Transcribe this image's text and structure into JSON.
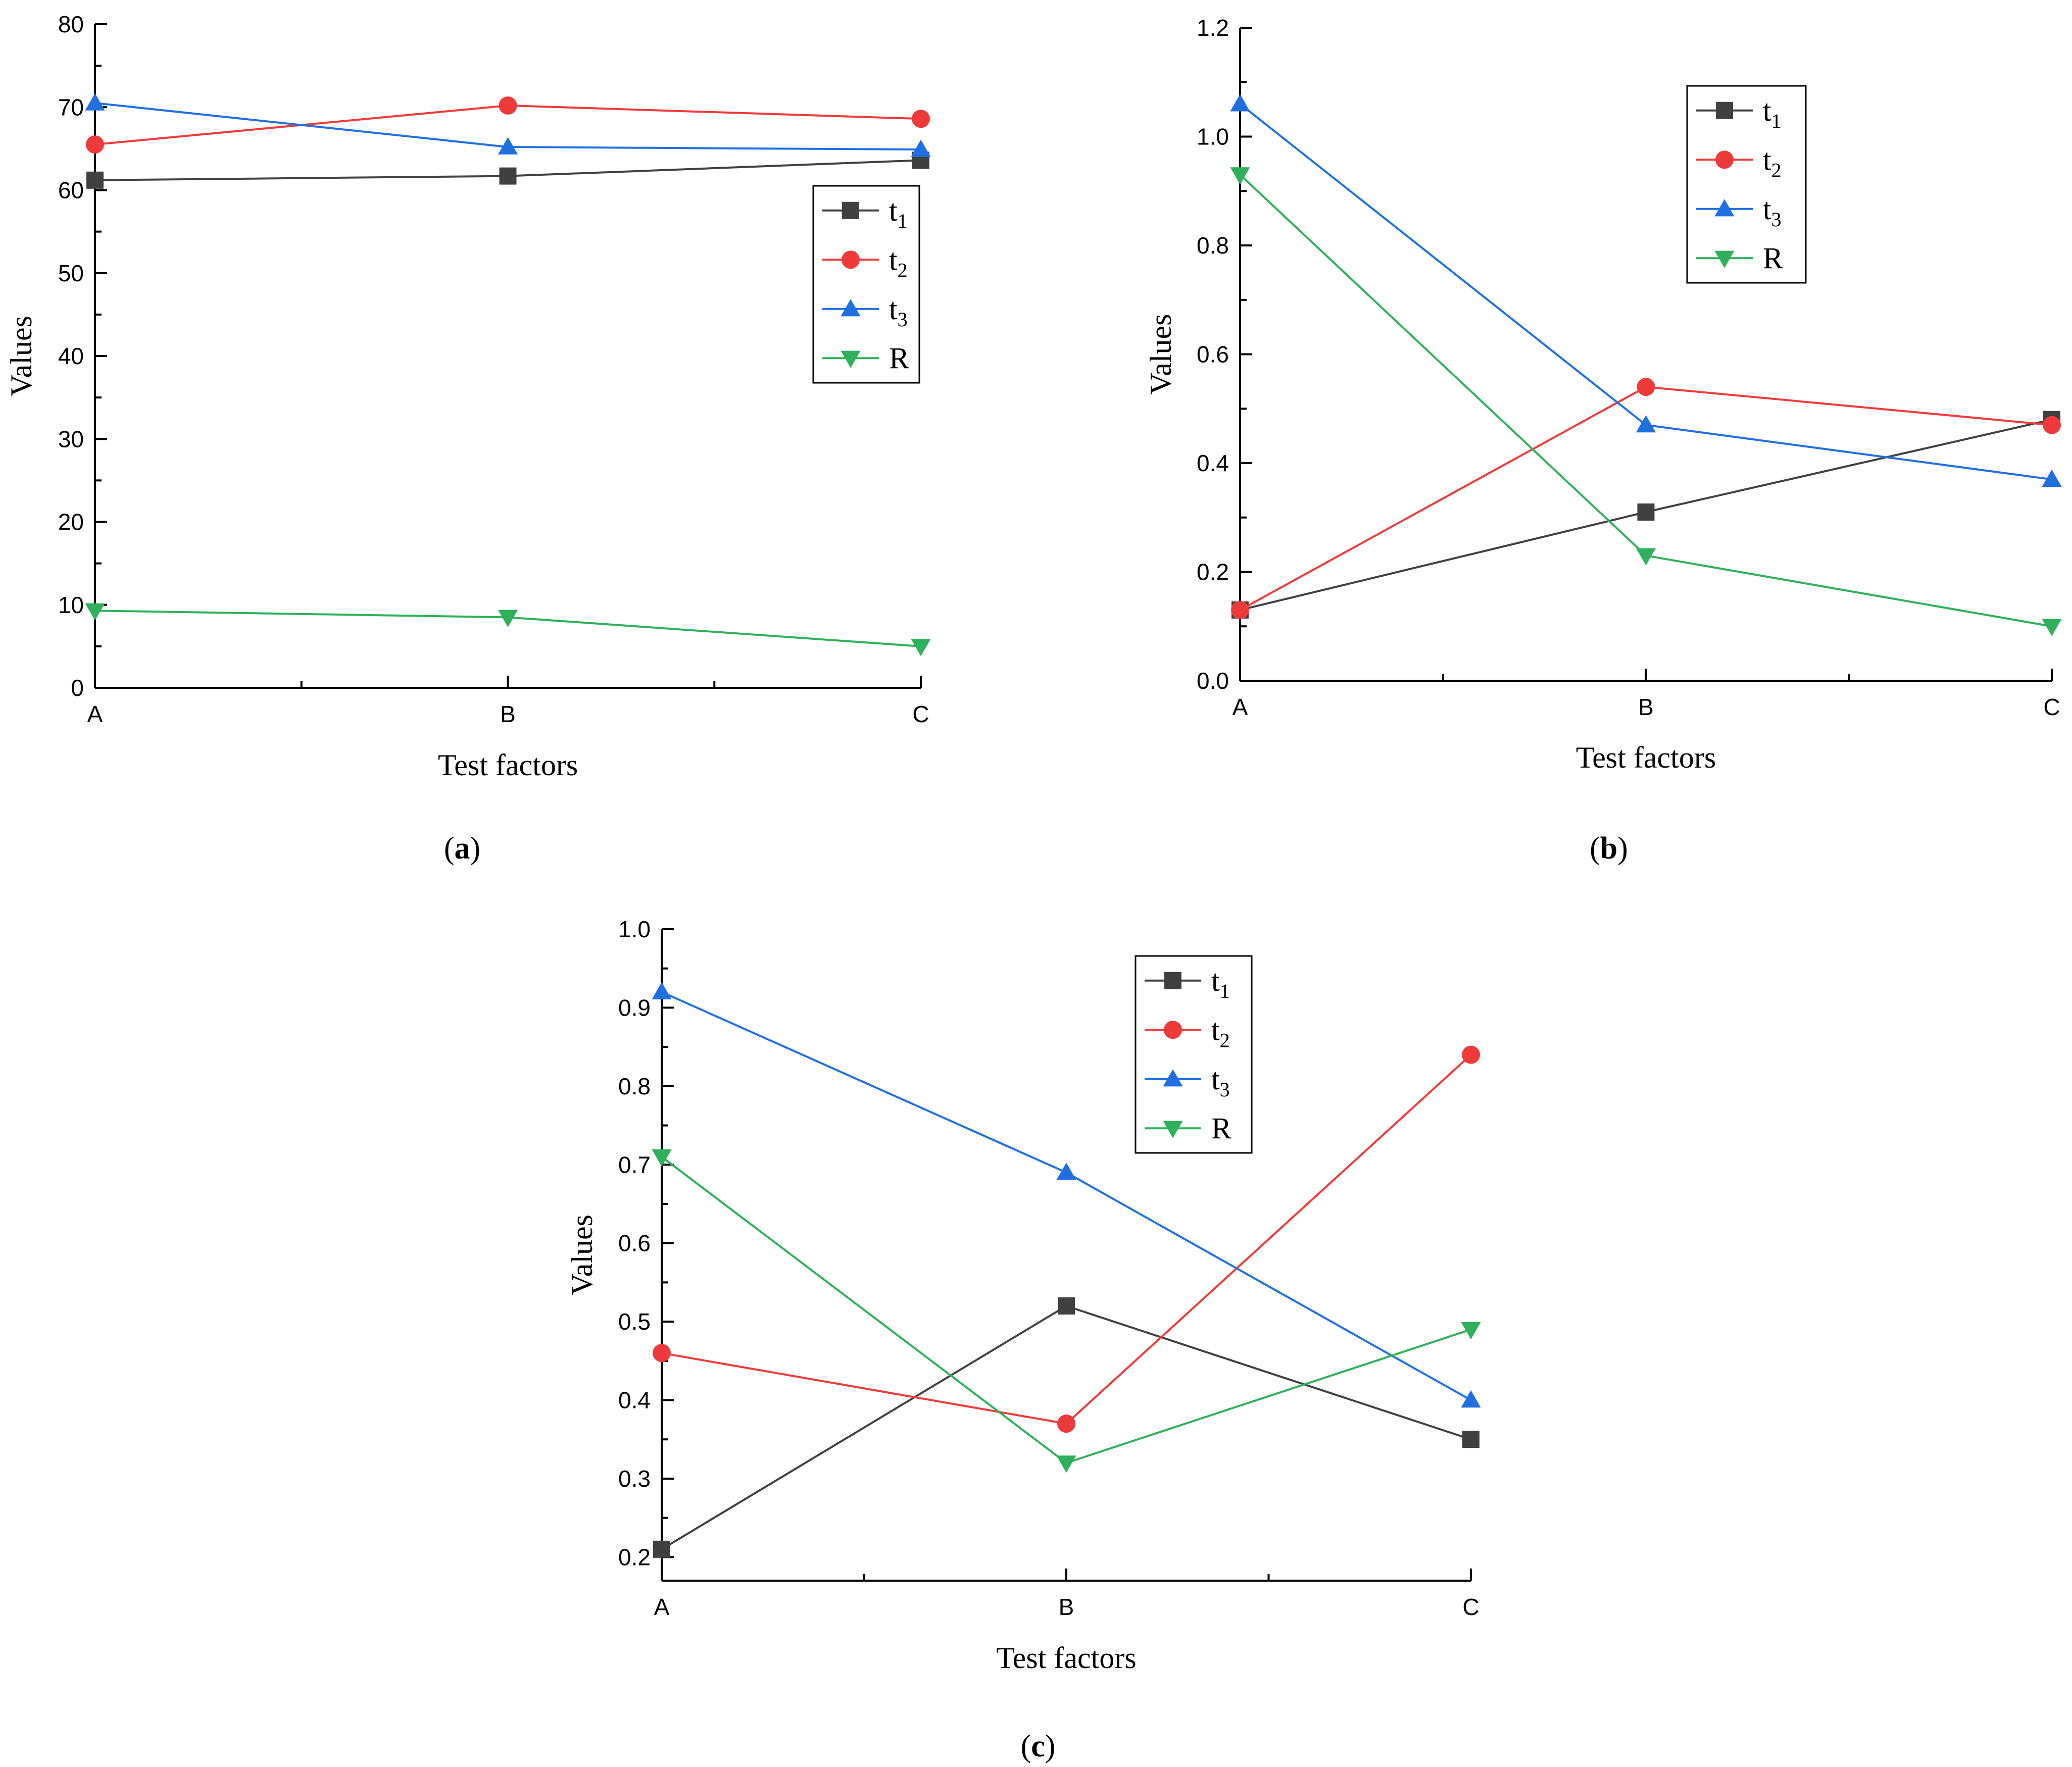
{
  "figure": {
    "panel_labels": [
      "a",
      "b",
      "c"
    ]
  },
  "colors": {
    "t1": "#404040",
    "t2": "#ef3a3a",
    "t3": "#1f6fe0",
    "R": "#2fb05a",
    "axis": "#000000"
  },
  "chart_data": [
    {
      "type": "line",
      "panel": "a",
      "xlabel": "Test factors",
      "ylabel": "Values",
      "categories": [
        "A",
        "B",
        "C"
      ],
      "ylim": [
        0,
        80
      ],
      "yticks": [
        0,
        10,
        20,
        30,
        40,
        50,
        60,
        70,
        80
      ],
      "ytick_labels": [
        "0",
        "10",
        "20",
        "30",
        "40",
        "50",
        "60",
        "70",
        "80"
      ],
      "legend_position": "right-middle",
      "series": [
        {
          "key": "t1",
          "name": "t",
          "sub": "1",
          "marker": "square",
          "values": [
            61.2,
            61.7,
            63.6
          ]
        },
        {
          "key": "t2",
          "name": "t",
          "sub": "2",
          "marker": "circle",
          "values": [
            65.5,
            70.2,
            68.6
          ]
        },
        {
          "key": "t3",
          "name": "t",
          "sub": "3",
          "marker": "triangle-up",
          "values": [
            70.5,
            65.2,
            64.9
          ]
        },
        {
          "key": "R",
          "name": "R",
          "sub": "",
          "marker": "triangle-down",
          "values": [
            9.3,
            8.5,
            5.0
          ]
        }
      ]
    },
    {
      "type": "line",
      "panel": "b",
      "xlabel": "Test factors",
      "ylabel": "Values",
      "categories": [
        "A",
        "B",
        "C"
      ],
      "ylim": [
        0,
        1.2
      ],
      "yticks": [
        0,
        0.2,
        0.4,
        0.6,
        0.8,
        1.0,
        1.2
      ],
      "ytick_labels": [
        "0.0",
        "0.2",
        "0.4",
        "0.6",
        "0.8",
        "1.0",
        "1.2"
      ],
      "legend_position": "top-right",
      "series": [
        {
          "key": "t1",
          "name": "t",
          "sub": "1",
          "marker": "square",
          "values": [
            0.13,
            0.31,
            0.48
          ]
        },
        {
          "key": "t2",
          "name": "t",
          "sub": "2",
          "marker": "circle",
          "values": [
            0.13,
            0.54,
            0.47
          ]
        },
        {
          "key": "t3",
          "name": "t",
          "sub": "3",
          "marker": "triangle-up",
          "values": [
            1.06,
            0.47,
            0.37
          ]
        },
        {
          "key": "R",
          "name": "R",
          "sub": "",
          "marker": "triangle-down",
          "values": [
            0.93,
            0.23,
            0.1
          ]
        }
      ]
    },
    {
      "type": "line",
      "panel": "c",
      "xlabel": "Test factors",
      "ylabel": "Values",
      "categories": [
        "A",
        "B",
        "C"
      ],
      "ylim": [
        0.17,
        1.0
      ],
      "yticks": [
        0.2,
        0.3,
        0.4,
        0.5,
        0.6,
        0.7,
        0.8,
        0.9,
        1.0
      ],
      "ytick_labels": [
        "0.2",
        "0.3",
        "0.4",
        "0.5",
        "0.6",
        "0.7",
        "0.8",
        "0.9",
        "1.0"
      ],
      "legend_position": "top-right",
      "series": [
        {
          "key": "t1",
          "name": "t",
          "sub": "1",
          "marker": "square",
          "values": [
            0.21,
            0.52,
            0.35
          ]
        },
        {
          "key": "t2",
          "name": "t",
          "sub": "2",
          "marker": "circle",
          "values": [
            0.46,
            0.37,
            0.84
          ]
        },
        {
          "key": "t3",
          "name": "t",
          "sub": "3",
          "marker": "triangle-up",
          "values": [
            0.92,
            0.69,
            0.4
          ]
        },
        {
          "key": "R",
          "name": "R",
          "sub": "",
          "marker": "triangle-down",
          "values": [
            0.71,
            0.32,
            0.49
          ]
        }
      ]
    }
  ]
}
